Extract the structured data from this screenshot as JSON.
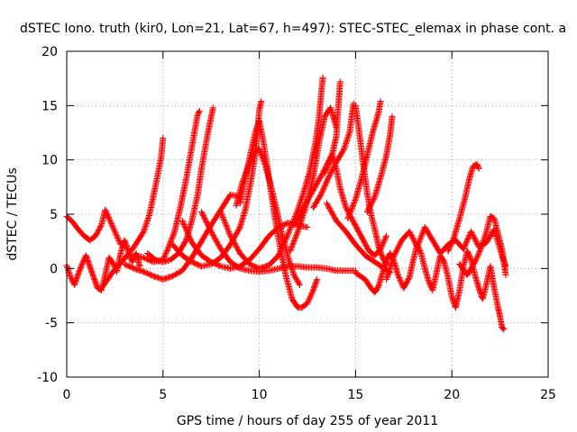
{
  "chart_data": {
    "type": "scatter",
    "title": "dSTEC Iono. truth (kir0, Lon=21, Lat=67, h=497): STEC-STEC_elemax in phase cont. a",
    "xlabel": "GPS time / hours of day 255 of year 2011",
    "ylabel": "dSTEC  / TECUs",
    "xlim": [
      0,
      25
    ],
    "ylim": [
      -10,
      20
    ],
    "x_ticks": [
      "0",
      "5",
      "10",
      "15",
      "20",
      "25"
    ],
    "y_ticks": [
      "-10",
      "-5",
      "0",
      "5",
      "10",
      "15",
      "20"
    ],
    "grid": true,
    "marker": "+",
    "color": "#ff0000",
    "series": [
      {
        "points": [
          [
            0.0,
            4.8
          ],
          [
            0.3,
            4.3
          ],
          [
            0.6,
            3.6
          ],
          [
            0.9,
            3.0
          ],
          [
            1.2,
            2.6
          ],
          [
            1.5,
            3.0
          ],
          [
            1.8,
            4.0
          ],
          [
            2.0,
            5.4
          ],
          [
            2.2,
            4.6
          ],
          [
            2.5,
            3.4
          ],
          [
            2.8,
            2.2
          ]
        ]
      },
      {
        "points": [
          [
            0.0,
            0.3
          ],
          [
            0.2,
            -0.8
          ],
          [
            0.4,
            -1.5
          ],
          [
            0.6,
            -0.5
          ],
          [
            0.8,
            0.4
          ],
          [
            1.0,
            1.2
          ],
          [
            1.2,
            0.2
          ],
          [
            1.4,
            -0.8
          ],
          [
            1.6,
            -1.8
          ],
          [
            1.8,
            -2.0
          ],
          [
            2.0,
            -0.6
          ],
          [
            2.2,
            1.0
          ],
          [
            2.4,
            0.5
          ],
          [
            2.6,
            -0.3
          ],
          [
            2.8,
            1.4
          ],
          [
            3.0,
            2.6
          ],
          [
            3.2,
            1.6
          ],
          [
            3.4,
            0.6
          ],
          [
            3.6,
            1.4
          ],
          [
            3.8,
            0.2
          ]
        ]
      },
      {
        "points": [
          [
            1.9,
            -1.6
          ],
          [
            2.4,
            -0.3
          ],
          [
            3.0,
            0.9
          ],
          [
            3.5,
            2.0
          ],
          [
            4.0,
            3.4
          ],
          [
            4.3,
            5.0
          ],
          [
            4.6,
            7.5
          ],
          [
            4.9,
            10.2
          ],
          [
            5.0,
            12.0
          ]
        ]
      },
      {
        "points": [
          [
            3.0,
            0.4
          ],
          [
            3.5,
            0.0
          ],
          [
            4.0,
            -0.3
          ],
          [
            4.5,
            -0.7
          ],
          [
            5.0,
            -1.0
          ],
          [
            5.5,
            -0.7
          ],
          [
            6.0,
            -0.2
          ],
          [
            6.5,
            1.0
          ],
          [
            7.0,
            2.5
          ],
          [
            7.5,
            4.0
          ],
          [
            8.0,
            5.4
          ],
          [
            8.5,
            6.8
          ],
          [
            9.0,
            6.6
          ]
        ]
      },
      {
        "points": [
          [
            3.5,
            1.2
          ],
          [
            4.0,
            1.0
          ],
          [
            4.5,
            0.6
          ],
          [
            5.0,
            0.8
          ],
          [
            5.3,
            2.0
          ],
          [
            5.6,
            3.4
          ],
          [
            5.9,
            5.6
          ],
          [
            6.2,
            8.2
          ],
          [
            6.5,
            11.2
          ],
          [
            6.8,
            14.2
          ],
          [
            6.9,
            14.5
          ]
        ]
      },
      {
        "points": [
          [
            4.2,
            1.4
          ],
          [
            4.6,
            0.8
          ],
          [
            5.0,
            0.6
          ],
          [
            5.4,
            0.8
          ],
          [
            5.8,
            1.4
          ],
          [
            6.2,
            2.6
          ],
          [
            6.5,
            4.4
          ],
          [
            6.8,
            6.8
          ],
          [
            7.0,
            9.2
          ],
          [
            7.3,
            12.2
          ],
          [
            7.6,
            14.8
          ]
        ]
      },
      {
        "points": [
          [
            5.5,
            2.2
          ],
          [
            6.0,
            1.2
          ],
          [
            6.5,
            0.6
          ],
          [
            7.0,
            0.2
          ],
          [
            7.5,
            0.4
          ],
          [
            8.0,
            1.0
          ],
          [
            8.5,
            2.2
          ],
          [
            9.0,
            3.8
          ],
          [
            9.3,
            5.6
          ],
          [
            9.6,
            8.4
          ],
          [
            9.8,
            10.6
          ],
          [
            9.9,
            12.4
          ],
          [
            10.0,
            14.6
          ],
          [
            10.1,
            15.4
          ]
        ]
      },
      {
        "points": [
          [
            6.0,
            4.4
          ],
          [
            6.5,
            2.4
          ],
          [
            7.0,
            1.2
          ],
          [
            7.5,
            0.6
          ],
          [
            8.0,
            0.2
          ],
          [
            8.5,
            0.0
          ],
          [
            9.0,
            0.2
          ],
          [
            9.5,
            0.8
          ],
          [
            10.0,
            1.8
          ],
          [
            10.5,
            3.0
          ],
          [
            11.0,
            3.8
          ],
          [
            11.5,
            4.2
          ],
          [
            12.0,
            4.0
          ],
          [
            12.5,
            3.8
          ]
        ]
      },
      {
        "points": [
          [
            7.0,
            5.2
          ],
          [
            7.5,
            3.4
          ],
          [
            8.0,
            1.8
          ],
          [
            8.5,
            0.6
          ],
          [
            9.0,
            0.0
          ],
          [
            9.5,
            -0.2
          ],
          [
            10.0,
            -0.3
          ],
          [
            10.5,
            -0.2
          ],
          [
            11.0,
            0.0
          ],
          [
            11.5,
            0.2
          ],
          [
            12.0,
            0.2
          ],
          [
            12.5,
            0.1
          ],
          [
            13.0,
            0.1
          ],
          [
            13.5,
            0.0
          ],
          [
            14.0,
            -0.2
          ],
          [
            14.5,
            -0.2
          ],
          [
            15.0,
            -0.2
          ]
        ]
      },
      {
        "points": [
          [
            8.0,
            5.2
          ],
          [
            8.5,
            3.0
          ],
          [
            9.0,
            1.4
          ],
          [
            9.5,
            0.4
          ],
          [
            10.0,
            0.0
          ],
          [
            10.5,
            0.3
          ],
          [
            11.0,
            1.2
          ],
          [
            11.5,
            3.2
          ],
          [
            12.0,
            5.4
          ],
          [
            12.3,
            7.0
          ],
          [
            12.6,
            8.8
          ],
          [
            12.9,
            11.4
          ],
          [
            13.1,
            13.8
          ],
          [
            13.2,
            15.8
          ],
          [
            13.3,
            17.6
          ]
        ]
      },
      {
        "points": [
          [
            8.8,
            5.8
          ],
          [
            9.1,
            7.8
          ],
          [
            9.4,
            9.2
          ],
          [
            9.7,
            10.6
          ],
          [
            10.0,
            11.0
          ],
          [
            10.3,
            9.6
          ],
          [
            10.6,
            7.6
          ],
          [
            10.9,
            5.4
          ],
          [
            11.2,
            3.0
          ],
          [
            11.5,
            1.0
          ],
          [
            11.8,
            -0.6
          ],
          [
            12.1,
            -1.5
          ]
        ]
      },
      {
        "points": [
          [
            9.0,
            6.0
          ],
          [
            9.4,
            9.4
          ],
          [
            9.8,
            12.6
          ],
          [
            10.0,
            13.6
          ],
          [
            10.2,
            11.8
          ],
          [
            10.5,
            8.4
          ],
          [
            10.8,
            4.8
          ],
          [
            11.1,
            1.8
          ],
          [
            11.4,
            -0.8
          ],
          [
            11.7,
            -2.8
          ],
          [
            12.0,
            -3.6
          ],
          [
            12.2,
            -3.6
          ],
          [
            12.5,
            -3.2
          ],
          [
            12.8,
            -2.0
          ],
          [
            13.0,
            -1.0
          ]
        ]
      },
      {
        "points": [
          [
            11.6,
            1.6
          ],
          [
            12.0,
            3.4
          ],
          [
            12.4,
            5.6
          ],
          [
            12.8,
            8.4
          ],
          [
            13.1,
            11.6
          ],
          [
            13.4,
            14.0
          ],
          [
            13.7,
            14.8
          ],
          [
            14.0,
            13.0
          ]
        ]
      },
      {
        "points": [
          [
            11.8,
            4.0
          ],
          [
            12.3,
            5.6
          ],
          [
            12.8,
            7.2
          ],
          [
            13.3,
            8.8
          ],
          [
            13.8,
            10.6
          ],
          [
            14.0,
            12.2
          ],
          [
            14.1,
            14.8
          ],
          [
            14.2,
            17.2
          ]
        ]
      },
      {
        "points": [
          [
            12.8,
            5.6
          ],
          [
            13.2,
            6.8
          ],
          [
            13.6,
            8.4
          ],
          [
            14.0,
            9.8
          ],
          [
            14.4,
            11.0
          ],
          [
            14.7,
            12.6
          ],
          [
            14.8,
            14.0
          ],
          [
            14.9,
            15.2
          ]
        ]
      },
      {
        "points": [
          [
            13.4,
            8.8
          ],
          [
            13.6,
            9.6
          ],
          [
            13.8,
            10.4
          ],
          [
            14.0,
            9.2
          ],
          [
            14.2,
            7.4
          ],
          [
            14.5,
            5.6
          ],
          [
            14.8,
            4.6
          ],
          [
            15.1,
            3.6
          ],
          [
            15.4,
            2.6
          ],
          [
            15.7,
            1.6
          ],
          [
            16.0,
            1.2
          ],
          [
            16.3,
            1.8
          ],
          [
            16.6,
            3.0
          ]
        ]
      },
      {
        "points": [
          [
            13.5,
            6.0
          ],
          [
            14.0,
            4.4
          ],
          [
            14.5,
            3.4
          ],
          [
            15.0,
            2.2
          ],
          [
            15.5,
            1.2
          ],
          [
            16.0,
            0.6
          ],
          [
            16.5,
            0.0
          ],
          [
            16.8,
            -0.4
          ]
        ]
      },
      {
        "points": [
          [
            14.6,
            4.6
          ],
          [
            15.0,
            6.4
          ],
          [
            15.3,
            8.2
          ],
          [
            15.6,
            10.4
          ],
          [
            15.9,
            12.6
          ],
          [
            16.2,
            14.4
          ],
          [
            16.3,
            15.4
          ]
        ]
      },
      {
        "points": [
          [
            15.0,
            15.0
          ],
          [
            15.2,
            12.4
          ],
          [
            15.4,
            9.6
          ],
          [
            15.6,
            7.0
          ],
          [
            15.8,
            5.0
          ],
          [
            16.0,
            3.6
          ],
          [
            16.2,
            2.0
          ],
          [
            16.4,
            1.0
          ],
          [
            16.6,
            0.4
          ]
        ]
      },
      {
        "points": [
          [
            15.6,
            5.2
          ],
          [
            16.0,
            6.6
          ],
          [
            16.3,
            8.4
          ],
          [
            16.6,
            10.4
          ],
          [
            16.8,
            12.4
          ],
          [
            16.9,
            14.0
          ]
        ]
      },
      {
        "points": [
          [
            15.0,
            -0.4
          ],
          [
            15.5,
            -1.0
          ],
          [
            15.8,
            -1.8
          ],
          [
            16.0,
            -2.2
          ],
          [
            16.2,
            -1.6
          ],
          [
            16.4,
            -0.4
          ],
          [
            16.6,
            0.8
          ],
          [
            16.8,
            1.4
          ],
          [
            17.0,
            0.6
          ],
          [
            17.2,
            -0.6
          ],
          [
            17.5,
            -1.8
          ],
          [
            17.8,
            -0.8
          ],
          [
            18.0,
            0.8
          ],
          [
            18.2,
            2.2
          ],
          [
            18.4,
            1.4
          ],
          [
            18.6,
            0.0
          ],
          [
            18.8,
            -1.2
          ],
          [
            19.0,
            -2.0
          ],
          [
            19.2,
            -0.4
          ],
          [
            19.4,
            1.2
          ],
          [
            19.6,
            0.6
          ],
          [
            19.8,
            -0.8
          ],
          [
            20.0,
            -2.6
          ],
          [
            20.2,
            -3.6
          ],
          [
            20.4,
            -2.0
          ],
          [
            20.6,
            0.2
          ],
          [
            20.8,
            1.6
          ],
          [
            21.0,
            0.8
          ],
          [
            21.2,
            -0.6
          ],
          [
            21.4,
            -1.8
          ],
          [
            21.6,
            -2.8
          ],
          [
            21.8,
            -1.4
          ],
          [
            22.0,
            0.2
          ],
          [
            22.2,
            -1.8
          ],
          [
            22.4,
            -3.6
          ],
          [
            22.5,
            -4.4
          ],
          [
            22.6,
            -5.4
          ],
          [
            22.7,
            -5.6
          ]
        ]
      },
      {
        "points": [
          [
            16.6,
            -1.0
          ],
          [
            17.0,
            1.2
          ],
          [
            17.4,
            2.6
          ],
          [
            17.8,
            3.4
          ],
          [
            18.2,
            2.0
          ],
          [
            18.6,
            3.8
          ],
          [
            19.0,
            2.6
          ],
          [
            19.4,
            1.4
          ],
          [
            19.8,
            2.2
          ],
          [
            20.2,
            2.6
          ],
          [
            20.6,
            1.8
          ],
          [
            21.0,
            3.4
          ],
          [
            21.4,
            2.0
          ],
          [
            21.8,
            2.4
          ],
          [
            22.2,
            3.6
          ],
          [
            22.6,
            1.2
          ],
          [
            22.8,
            0.2
          ]
        ]
      },
      {
        "points": [
          [
            19.8,
            1.6
          ],
          [
            20.1,
            2.8
          ],
          [
            20.4,
            4.6
          ],
          [
            20.7,
            6.6
          ],
          [
            20.9,
            8.2
          ],
          [
            21.1,
            9.4
          ],
          [
            21.3,
            9.6
          ],
          [
            21.4,
            9.2
          ]
        ]
      },
      {
        "points": [
          [
            20.4,
            0.4
          ],
          [
            20.8,
            -0.6
          ],
          [
            21.2,
            0.6
          ],
          [
            21.5,
            1.8
          ],
          [
            21.8,
            3.4
          ],
          [
            22.0,
            4.8
          ],
          [
            22.2,
            4.6
          ],
          [
            22.4,
            3.2
          ],
          [
            22.6,
            1.8
          ],
          [
            22.8,
            -0.6
          ]
        ]
      }
    ]
  }
}
